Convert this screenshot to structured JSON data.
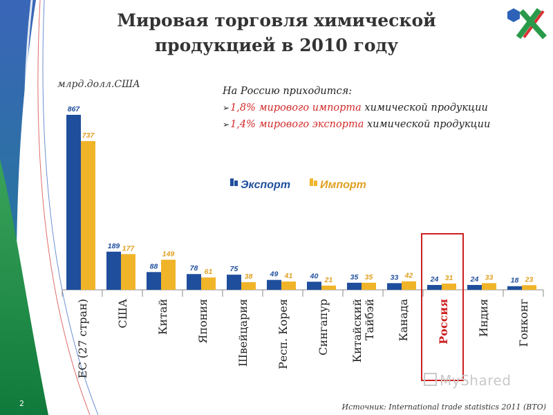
{
  "slide": {
    "title_line1": "Мировая торговля химической",
    "title_line2": "продукцией в 2010 году",
    "unit_label": "млрд.долл.США",
    "note_heading": "На Россию приходится:",
    "note_items": [
      {
        "highlight": "1,8% мирового импорта",
        "rest": " химической продукции"
      },
      {
        "highlight": "1,4% мирового экспорта",
        "rest": " химической продукции"
      }
    ],
    "source": "Источник: International trade statistics 2011 (ВТО)",
    "page_number": "2",
    "watermark": "MyShared"
  },
  "colors": {
    "export": "#1f4e9c",
    "import": "#f0b429",
    "highlight_box": "#cc1f1f",
    "note_highlight": "#d42a2a"
  },
  "chart_data": {
    "type": "bar",
    "title": "Мировая торговля химической продукцией в 2010 году",
    "ylabel": "млрд.долл.США",
    "xlabel": "",
    "ylim": [
      0,
      867
    ],
    "legend_position": "top-center",
    "highlighted_category": "Россия",
    "categories": [
      "ЕС (27 стран)",
      "США",
      "Китай",
      "Япония",
      "Швейцария",
      "Респ. Корея",
      "Сингапур",
      "Китайский Тайбэй",
      "Канада",
      "Россия",
      "Индия",
      "Гонконг"
    ],
    "series": [
      {
        "name": "Экспорт",
        "values": [
          867,
          189,
          88,
          78,
          75,
          49,
          40,
          35,
          33,
          24,
          24,
          18
        ]
      },
      {
        "name": "Импорт",
        "values": [
          737,
          177,
          149,
          61,
          38,
          41,
          21,
          35,
          42,
          31,
          33,
          23
        ]
      }
    ]
  }
}
